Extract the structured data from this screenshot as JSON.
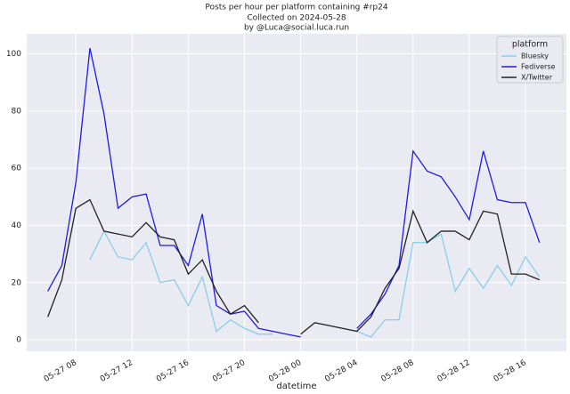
{
  "chart_data": {
    "type": "line",
    "title": "Posts per hour per platform containing #rp24",
    "subtitle": [
      "Collected on 2024-05-28",
      "by @Luca@social.luca.run"
    ],
    "x_label": "datetime",
    "legend_title": "platform",
    "legend_position": "upper right",
    "grid": true,
    "x": [
      "05-27 06",
      "05-27 07",
      "05-27 08",
      "05-27 09",
      "05-27 10",
      "05-27 11",
      "05-27 12",
      "05-27 13",
      "05-27 14",
      "05-27 15",
      "05-27 16",
      "05-27 17",
      "05-27 18",
      "05-27 19",
      "05-27 20",
      "05-27 21",
      "05-27 22",
      "05-27 23",
      "05-28 00",
      "05-28 01",
      "05-28 02",
      "05-28 03",
      "05-28 04",
      "05-28 05",
      "05-28 06",
      "05-28 07",
      "05-28 08",
      "05-28 09",
      "05-28 10",
      "05-28 11",
      "05-28 12",
      "05-28 13",
      "05-28 14",
      "05-28 15",
      "05-28 16",
      "05-28 17"
    ],
    "series": [
      {
        "name": "Bluesky",
        "color": "#87ceeb",
        "values": [
          null,
          null,
          null,
          28,
          38,
          29,
          28,
          34,
          20,
          21,
          12,
          22,
          3,
          7,
          4,
          2,
          2,
          null,
          null,
          null,
          null,
          null,
          3,
          1,
          7,
          7,
          34,
          34,
          37,
          17,
          25,
          18,
          26,
          19,
          29,
          22
        ]
      },
      {
        "name": "Fediverse",
        "color": "#1c1ce6",
        "values": [
          17,
          26,
          55,
          102,
          79,
          46,
          50,
          51,
          33,
          33,
          26,
          44,
          12,
          9,
          10,
          4,
          3,
          2,
          1,
          null,
          null,
          null,
          4,
          9,
          16,
          26,
          66,
          59,
          57,
          50,
          42,
          66,
          49,
          48,
          48,
          34
        ]
      },
      {
        "name": "X/Twitter",
        "color": "#222222",
        "values": [
          8,
          21,
          46,
          49,
          38,
          37,
          36,
          41,
          36,
          35,
          23,
          28,
          17,
          9,
          12,
          6,
          null,
          null,
          2,
          6,
          5,
          4,
          3,
          8,
          18,
          25,
          45,
          34,
          38,
          38,
          35,
          45,
          44,
          23,
          23,
          21
        ]
      }
    ],
    "xlim": [
      "05-27 04:30",
      "05-28 18:55"
    ],
    "xticks": [
      "05-27 08",
      "05-27 12",
      "05-27 16",
      "05-27 20",
      "05-28 00",
      "05-28 04",
      "05-28 08",
      "05-28 12",
      "05-28 16"
    ],
    "ylim": [
      -4,
      107
    ],
    "yticks": [
      0,
      20,
      40,
      60,
      80,
      100
    ]
  }
}
